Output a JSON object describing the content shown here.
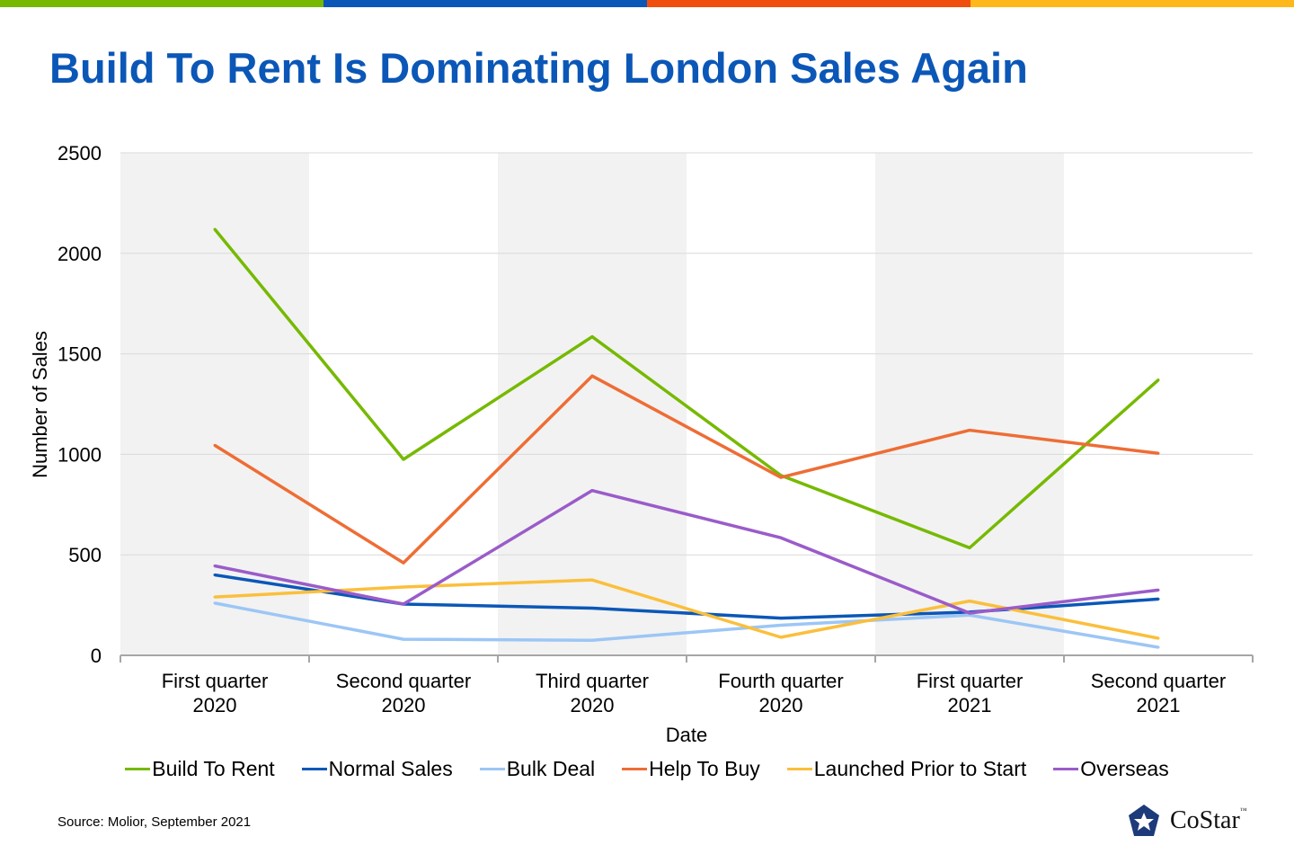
{
  "top_bar_colors": [
    "#76b900",
    "#0b57b7",
    "#f04e0f",
    "#ffb81c"
  ],
  "title": "Build To Rent Is Dominating London Sales Again",
  "source": "Source: Molior, September 2021",
  "logo": {
    "text": "CoStar",
    "tm": "™",
    "color": "#1d3a7a"
  },
  "chart_data": {
    "type": "line",
    "title": "",
    "xlabel": "Date",
    "ylabel": "Number of Sales",
    "ylim": [
      0,
      2500
    ],
    "yticks": [
      "0",
      "500",
      "1000",
      "1500",
      "2000",
      "2500"
    ],
    "yticks_values": [
      0,
      500,
      1000,
      1500,
      2000,
      2500
    ],
    "categories": [
      [
        "First quarter",
        "2020"
      ],
      [
        "Second quarter",
        "2020"
      ],
      [
        "Third quarter",
        "2020"
      ],
      [
        "Fourth quarter",
        "2020"
      ],
      [
        "First quarter",
        "2021"
      ],
      [
        "Second quarter",
        "2021"
      ]
    ],
    "grid": true,
    "alternating_bands": true,
    "legend_position": "bottom",
    "series": [
      {
        "name": "Build To Rent",
        "color": "#76b900",
        "values": [
          2120,
          975,
          1585,
          895,
          535,
          1370
        ]
      },
      {
        "name": "Normal Sales",
        "color": "#0b57b7",
        "values": [
          400,
          255,
          235,
          185,
          215,
          280
        ]
      },
      {
        "name": "Bulk Deal",
        "color": "#9cc6f5",
        "values": [
          260,
          80,
          75,
          150,
          200,
          40
        ]
      },
      {
        "name": "Help To Buy",
        "color": "#ee6d35",
        "values": [
          1045,
          460,
          1390,
          885,
          1120,
          1005
        ]
      },
      {
        "name": "Launched Prior to Start",
        "color": "#fbbf3c",
        "values": [
          290,
          340,
          375,
          90,
          270,
          85
        ]
      },
      {
        "name": "Overseas",
        "color": "#9a5cc9",
        "values": [
          445,
          255,
          820,
          585,
          210,
          325
        ]
      }
    ]
  }
}
